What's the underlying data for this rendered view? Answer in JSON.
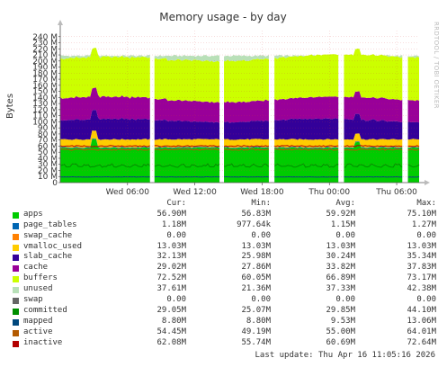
{
  "chart_data": {
    "type": "area",
    "title": "Memory usage - by day",
    "ylabel": "Bytes",
    "side_label": "RRDTOOL / TOBI OETIKER",
    "ylim": [
      0,
      250000000
    ],
    "yticks": [
      0,
      10000000,
      20000000,
      30000000,
      40000000,
      50000000,
      60000000,
      70000000,
      80000000,
      90000000,
      100000000,
      110000000,
      120000000,
      130000000,
      140000000,
      150000000,
      160000000,
      170000000,
      180000000,
      190000000,
      200000000,
      210000000,
      220000000,
      230000000,
      240000000
    ],
    "ytick_labels": [
      "0",
      "10 M",
      "20 M",
      "30 M",
      "40 M",
      "50 M",
      "60 M",
      "70 M",
      "80 M",
      "90 M",
      "100 M",
      "110 M",
      "120 M",
      "130 M",
      "140 M",
      "150 M",
      "160 M",
      "170 M",
      "180 M",
      "190 M",
      "200 M",
      "210 M",
      "220 M",
      "230 M",
      "240 M"
    ],
    "x_range_hours": [
      0,
      32
    ],
    "xticks": [
      {
        "t": 6,
        "label": "Wed 06:00"
      },
      {
        "t": 12,
        "label": "Wed 12:00"
      },
      {
        "t": 18,
        "label": "Wed 18:00"
      },
      {
        "t": 24,
        "label": "Thu 00:00"
      },
      {
        "t": 30,
        "label": "Thu 06:00"
      }
    ],
    "gaps_hours": [
      [
        8.0,
        8.4
      ],
      [
        14.2,
        14.6
      ],
      [
        18.6,
        19.1
      ],
      [
        24.8,
        25.3
      ],
      [
        30.5,
        31.0
      ]
    ],
    "grid": true,
    "stacked_series": [
      {
        "name": "apps",
        "color": "#00cc00",
        "avg": 59.92
      },
      {
        "name": "page_tables",
        "color": "#0066b3",
        "avg": 1.15
      },
      {
        "name": "swap_cache",
        "color": "#ff8000",
        "avg": 0.0
      },
      {
        "name": "vmalloc_used",
        "color": "#ffcc00",
        "avg": 13.03
      },
      {
        "name": "slab_cache",
        "color": "#330099",
        "avg": 30.24
      },
      {
        "name": "cache",
        "color": "#990099",
        "avg": 33.82
      },
      {
        "name": "buffers",
        "color": "#ccff00",
        "avg": 66.89
      },
      {
        "name": "unused",
        "color": "#b8e0b8",
        "avg": 37.33
      }
    ],
    "line_series": [
      {
        "name": "committed",
        "color": "#008f00",
        "avg": 29.85
      },
      {
        "name": "mapped",
        "color": "#00487d",
        "avg": 9.53
      },
      {
        "name": "active",
        "color": "#b35a00",
        "avg": 55.0
      },
      {
        "name": "inactive",
        "color": "#b30000",
        "avg": 60.69
      }
    ]
  },
  "legend": {
    "headers": {
      "cur": "Cur:",
      "min": "Min:",
      "avg": "Avg:",
      "max": "Max:"
    },
    "rows": [
      {
        "name": "apps",
        "color": "#00cc00",
        "cur": "56.90M",
        "min": "56.83M",
        "avg": "59.92M",
        "max": "75.10M"
      },
      {
        "name": "page_tables",
        "color": "#0066b3",
        "cur": "1.18M",
        "min": "977.64k",
        "avg": "1.15M",
        "max": "1.27M"
      },
      {
        "name": "swap_cache",
        "color": "#ff8000",
        "cur": "0.00",
        "min": "0.00",
        "avg": "0.00",
        "max": "0.00"
      },
      {
        "name": "vmalloc_used",
        "color": "#ffcc00",
        "cur": "13.03M",
        "min": "13.03M",
        "avg": "13.03M",
        "max": "13.03M"
      },
      {
        "name": "slab_cache",
        "color": "#330099",
        "cur": "32.13M",
        "min": "25.98M",
        "avg": "30.24M",
        "max": "35.34M"
      },
      {
        "name": "cache",
        "color": "#990099",
        "cur": "29.02M",
        "min": "27.86M",
        "avg": "33.82M",
        "max": "37.83M"
      },
      {
        "name": "buffers",
        "color": "#ccff00",
        "cur": "72.52M",
        "min": "60.05M",
        "avg": "66.89M",
        "max": "73.17M"
      },
      {
        "name": "unused",
        "color": "#b8e0b8",
        "cur": "37.61M",
        "min": "21.36M",
        "avg": "37.33M",
        "max": "42.38M"
      },
      {
        "name": "swap",
        "color": "#666666",
        "cur": "0.00",
        "min": "0.00",
        "avg": "0.00",
        "max": "0.00"
      },
      {
        "name": "committed",
        "color": "#008f00",
        "cur": "29.05M",
        "min": "25.07M",
        "avg": "29.85M",
        "max": "44.10M"
      },
      {
        "name": "mapped",
        "color": "#00487d",
        "cur": "8.80M",
        "min": "8.80M",
        "avg": "9.53M",
        "max": "13.06M"
      },
      {
        "name": "active",
        "color": "#b35a00",
        "cur": "54.45M",
        "min": "49.19M",
        "avg": "55.00M",
        "max": "64.01M"
      },
      {
        "name": "inactive",
        "color": "#b30000",
        "cur": "62.08M",
        "min": "55.74M",
        "avg": "60.69M",
        "max": "72.64M"
      }
    ]
  },
  "footer": "Last update: Thu Apr 16 11:05:16 2026"
}
